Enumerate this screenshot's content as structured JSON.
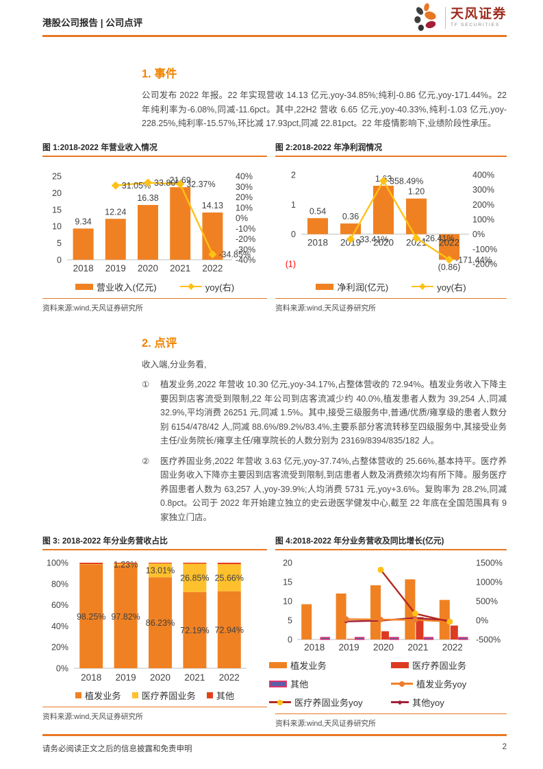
{
  "header": {
    "left": "港股公司报告 | 公司点评",
    "brand": "天风证券",
    "brand_sub": "TF SECURITIES"
  },
  "colors": {
    "accent_orange": "#E87722",
    "heading_orange": "#F08300",
    "bar_orange": "#F08122",
    "line_yellow": "#FFC117",
    "mix_yellow": "#FFC02E",
    "mix_red": "#E2401B",
    "care_red": "#DC3B22",
    "other_fill_blue": "#5A5FA8",
    "other_stroke_pink": "#E0356B",
    "dark_red_line": "#B3281E",
    "crimson_line": "#A12038",
    "brand_red": "#9E2A1C",
    "negative_tick_red": "#FF0000"
  },
  "section1": {
    "heading": "1. 事件",
    "body": "公司发布 2022 年报。22 年实现营收 14.13 亿元,yoy-34.85%;纯利-0.86 亿元,yoy-171.44%。22 年纯利率为-6.08%,同减-11.6pct。其中,22H2 营收 6.65 亿元,yoy-40.33%,纯利-1.03 亿元,yoy-228.25%,纯利率-15.57%,环比减 17.93pct,同减 22.81pct。22 年疫情影响下,业绩阶段性承压。"
  },
  "section2": {
    "heading": "2. 点评",
    "intro": "收入端,分业务看,",
    "items": [
      {
        "num": "①",
        "text": "植发业务,2022 年营收 10.30 亿元,yoy-34.17%,占整体营收的 72.94%。植发业务收入下降主要因到店客流受到限制,22 年公司到店客流减少约 40.0%,植发患者人数为 39,254 人,同减 32.9%,平均消费 26251 元,同减 1.5%。其中,接受三级服务中,普通/优质/雍享级的患者人数分别 6154/478/42 人,同减 88.6%/89.2%/83.4%,主要系部分客流转移至四级服务中,其接受业务主任/业务院长/雍享主任/雍享院长的人数分别为 23169/8394/835/182 人。"
      },
      {
        "num": "②",
        "text": "医疗养固业务,2022 年营收 3.63 亿元,yoy-37.74%,占整体营收的 25.66%,基本持平。医疗养固业务收入下降亦主要因到店客流受到限制,到店患者人数及消费频次均有所下降。服务医疗养固患者人数为 63,257 人,yoy-39.9%;人均消费 5731 元,yoy+3.6%。复购率为 28.2%,同减 0.8pct。公司于 2022 年开始建立独立的史云逊医学健发中心,截至 22 年底在全国范围具有 9 家独立门店。"
      }
    ]
  },
  "figures": [
    {
      "title": "图 1:2018-2022 年营业收入情况",
      "source": "资料来源:wind,天风证券研究所",
      "legend": [
        {
          "label": "营业收入(亿元)",
          "swatch": "bar",
          "color": "#F08122"
        },
        {
          "label": "yoy(右)",
          "swatch": "line-diamond",
          "color": "#FFC117"
        }
      ],
      "chart_data": {
        "type": "bar-line",
        "categories": [
          "2018",
          "2019",
          "2020",
          "2021",
          "2022"
        ],
        "bars": {
          "name": "营业收入(亿元)",
          "color": "#F08122",
          "values": [
            9.34,
            12.24,
            16.38,
            21.69,
            14.13
          ],
          "labels": [
            "9.34",
            "12.24",
            "16.38",
            "21.69",
            "14.13"
          ]
        },
        "line": {
          "name": "yoy(右)",
          "color": "#FFC117",
          "values": [
            null,
            31.05,
            33.8,
            32.37,
            -34.85
          ],
          "labels": [
            "",
            "31.05%",
            "33.80%",
            "32.37%",
            "-34.85%"
          ]
        },
        "left_axis": {
          "min": 0,
          "max": 25,
          "ticks": [
            {
              "v": 25,
              "label": "25"
            },
            {
              "v": 20,
              "label": "20"
            },
            {
              "v": 15,
              "label": "15"
            },
            {
              "v": 10,
              "label": "10"
            },
            {
              "v": 5,
              "label": "5"
            },
            {
              "v": 0,
              "label": "0"
            }
          ]
        },
        "right_axis": {
          "min": -40,
          "max": 40,
          "ticks": [
            {
              "v": 40,
              "label": "40%"
            },
            {
              "v": 30,
              "label": "30%"
            },
            {
              "v": 20,
              "label": "20%"
            },
            {
              "v": 10,
              "label": "10%"
            },
            {
              "v": 0,
              "label": "0%"
            },
            {
              "v": -10,
              "label": "-10%"
            },
            {
              "v": -20,
              "label": "-20%"
            },
            {
              "v": -30,
              "label": "-30%"
            },
            {
              "v": -40,
              "label": "-40%"
            }
          ]
        }
      }
    },
    {
      "title": "图 2:2018-2022 年净利润情况",
      "source": "资料来源:wind,天风证券研究所",
      "legend": [
        {
          "label": "净利润(亿元)",
          "swatch": "bar",
          "color": "#F08122"
        },
        {
          "label": "yoy(右)",
          "swatch": "line-diamond",
          "color": "#FFC117"
        }
      ],
      "chart_data": {
        "type": "bar-line",
        "categories": [
          "2018",
          "2019",
          "2020",
          "2021",
          "2022"
        ],
        "bars": {
          "name": "净利润(亿元)",
          "color": "#F08122",
          "values": [
            0.54,
            0.36,
            1.63,
            1.2,
            -0.86
          ],
          "labels": [
            "0.54",
            "0.36",
            "1.63",
            "1.20",
            "(0.86)"
          ]
        },
        "line": {
          "name": "yoy(右)",
          "color": "#FFC117",
          "values": [
            null,
            -33.41,
            358.49,
            -26.41,
            -171.44
          ],
          "labels": [
            "",
            "-33.41%",
            "358.49%",
            "-26.41%",
            "-171.44%"
          ]
        },
        "left_axis": {
          "min": -1,
          "max": 2,
          "ticks": [
            {
              "v": 2,
              "label": "2"
            },
            {
              "v": 1,
              "label": "1"
            },
            {
              "v": 0,
              "label": "0"
            },
            {
              "v": -1,
              "label": "(1)",
              "red": true
            }
          ]
        },
        "right_axis": {
          "min": -200,
          "max": 400,
          "ticks": [
            {
              "v": 400,
              "label": "400%"
            },
            {
              "v": 300,
              "label": "300%"
            },
            {
              "v": 200,
              "label": "200%"
            },
            {
              "v": 100,
              "label": "100%"
            },
            {
              "v": 0,
              "label": "0%"
            },
            {
              "v": -100,
              "label": "-100%"
            },
            {
              "v": -200,
              "label": "-200%"
            }
          ]
        }
      }
    },
    {
      "title": "图 3: 2018-2022 年分业务营收占比",
      "source": "资料来源:wind,天风证券研究所",
      "legend": [
        {
          "label": "植发业务",
          "swatch": "sq",
          "color": "#F08122"
        },
        {
          "label": "医疗养固业务",
          "swatch": "sq",
          "color": "#FFC02E"
        },
        {
          "label": "其他",
          "swatch": "sq",
          "color": "#E2401B"
        }
      ],
      "chart_data": {
        "type": "stacked-bar-100",
        "categories": [
          "2018",
          "2019",
          "2020",
          "2021",
          "2022"
        ],
        "series": [
          {
            "name": "植发业务",
            "color": "#F08122",
            "values": [
              98.25,
              97.82,
              86.23,
              72.19,
              72.94
            ],
            "labels": [
              "98.25%",
              "97.82%",
              "86.23%",
              "72.19%",
              "72.94%"
            ]
          },
          {
            "name": "医疗养固业务",
            "color": "#FFC02E",
            "values": [
              0.3,
              1.23,
              13.01,
              26.85,
              25.66
            ],
            "labels": [
              "",
              "1.23%",
              "13.01%",
              "26.85%",
              "25.66%"
            ]
          },
          {
            "name": "其他",
            "color": "#E2401B",
            "values": [
              1.45,
              0.95,
              0.76,
              0.96,
              1.4
            ],
            "labels": [
              "",
              "",
              "",
              "",
              ""
            ]
          }
        ],
        "y_ticks": [
          "0%",
          "20%",
          "40%",
          "60%",
          "80%",
          "100%"
        ]
      }
    },
    {
      "title": "图 4:2018-2022 年分业务营收及同比增长(亿元)",
      "source": "资料来源:wind,天风证券研究所",
      "legend": [
        {
          "label": "植发业务",
          "swatch": "bar",
          "color": "#F08122"
        },
        {
          "label": "医疗养固业务",
          "swatch": "bar",
          "color": "#DC3B22"
        },
        {
          "label": "其他",
          "swatch": "bar-outline",
          "color": "#5A5FA8",
          "stroke": "#E0356B"
        },
        {
          "label": "植发业务yoy",
          "swatch": "line-circle",
          "color": "#F08122",
          "marker": "#ED7D31"
        },
        {
          "label": "医疗养固业务yoy",
          "swatch": "line-circle",
          "color": "#B3281E",
          "marker": "#FFC117"
        },
        {
          "label": "其他yoy",
          "swatch": "line-small",
          "color": "#A12038",
          "marker": "#A12038"
        }
      ],
      "chart_data": {
        "type": "bar-line-multi",
        "categories": [
          "2018",
          "2019",
          "2020",
          "2021",
          "2022"
        ],
        "bar_series": [
          {
            "name": "植发业务",
            "color": "#F08122",
            "values": [
              9.18,
              11.97,
              14.12,
              15.66,
              10.3
            ]
          },
          {
            "name": "医疗养固业务",
            "color": "#DC3B22",
            "values": [
              0.02,
              0.15,
              2.13,
              5.82,
              3.63
            ]
          },
          {
            "name": "其他",
            "color": "#5A5FA8",
            "stroke": "#E0356B",
            "values": [
              0.16,
              0.12,
              0.12,
              0.21,
              0.2
            ]
          }
        ],
        "line_series": [
          {
            "name": "植发业务yoy",
            "color": "#F08122",
            "marker": "#ED7D31",
            "values": [
              null,
              30.5,
              18.0,
              10.9,
              -34.2
            ]
          },
          {
            "name": "医疗养固业务yoy",
            "color": "#B3281E",
            "marker": "#FFC117",
            "values": [
              null,
              null,
              1315,
              173,
              -37.7
            ]
          },
          {
            "name": "其他yoy",
            "color": "#A12038",
            "marker": "#A12038",
            "values": [
              null,
              -30,
              -10,
              60,
              -10
            ]
          }
        ],
        "left_axis": {
          "min": 0,
          "max": 20,
          "ticks": [
            {
              "v": 20,
              "label": "20"
            },
            {
              "v": 15,
              "label": "15"
            },
            {
              "v": 10,
              "label": "10"
            },
            {
              "v": 5,
              "label": "5"
            },
            {
              "v": 0,
              "label": "0"
            }
          ]
        },
        "right_axis": {
          "min": -500,
          "max": 1500,
          "ticks": [
            {
              "v": 1500,
              "label": "1500%"
            },
            {
              "v": 1000,
              "label": "1000%"
            },
            {
              "v": 500,
              "label": "500%"
            },
            {
              "v": 0,
              "label": "0%"
            },
            {
              "v": -500,
              "label": "-500%"
            }
          ]
        }
      }
    }
  ],
  "footer": {
    "disclaimer": "请务必阅读正文之后的信息披露和免责申明",
    "page": "2"
  }
}
